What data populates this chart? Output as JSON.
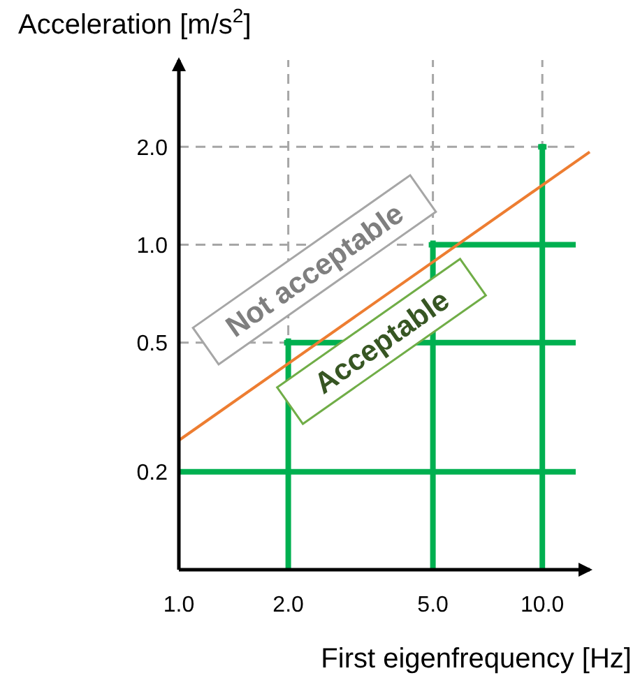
{
  "chart_data": {
    "type": "line",
    "xlabel": "First eigenfrequency [Hz]",
    "ylabel": "Acceleration [m/s$^{2}$]",
    "log": "xy",
    "grid": true,
    "x": [
      1,
      13.5
    ],
    "series": [
      {
        "color": "#ed7d31",
        "values": [
          0.25,
          1.93
        ]
      }
    ],
    "xlim": [
      1,
      13.5
    ],
    "xticks": [
      {
        "value": 1,
        "label": "1.0"
      },
      {
        "value": 2,
        "label": "2.0"
      },
      {
        "value": 5,
        "label": "5.0"
      },
      {
        "value": 10,
        "label": "10.0"
      }
    ],
    "ylim": [
      0.1,
      3.7
    ],
    "yticks": [
      {
        "value": 0.2,
        "label": "0.2"
      },
      {
        "value": 0.5,
        "label": "0.5"
      },
      {
        "value": 1,
        "label": "1.0"
      },
      {
        "value": 2,
        "label": "2.0"
      }
    ],
    "annotations": [
      "Not acceptable",
      "Acceptable"
    ]
  }
}
